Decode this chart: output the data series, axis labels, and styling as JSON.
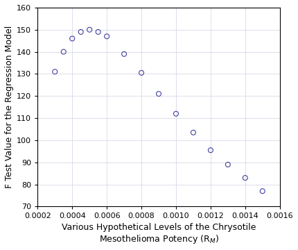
{
  "x": [
    0.0003,
    0.00035,
    0.0004,
    0.00045,
    0.0005,
    0.00055,
    0.0006,
    0.0007,
    0.0008,
    0.0009,
    0.001,
    0.0011,
    0.0012,
    0.0013,
    0.0014,
    0.0015
  ],
  "y": [
    131,
    140,
    146,
    149,
    150,
    149,
    147,
    139,
    130.5,
    121,
    112,
    103.5,
    95.5,
    89,
    83,
    77
  ],
  "ylabel": "F Test Value for the Regression Model",
  "xlim": [
    0.0002,
    0.0016
  ],
  "ylim": [
    70,
    160
  ],
  "xticks": [
    0.0002,
    0.0004,
    0.0006,
    0.0008,
    0.001,
    0.0012,
    0.0014,
    0.0016
  ],
  "yticks": [
    70,
    80,
    90,
    100,
    110,
    120,
    130,
    140,
    150,
    160
  ],
  "marker_color": "#4040a0",
  "marker_facecolor": "none",
  "marker_size": 5,
  "marker_style": "o",
  "grid_color": "#d8d8e8",
  "background_color": "#ffffff",
  "subscript_label": "M",
  "tick_fontsize": 8,
  "label_fontsize": 9,
  "figure_width": 4.3,
  "figure_height": 3.6
}
